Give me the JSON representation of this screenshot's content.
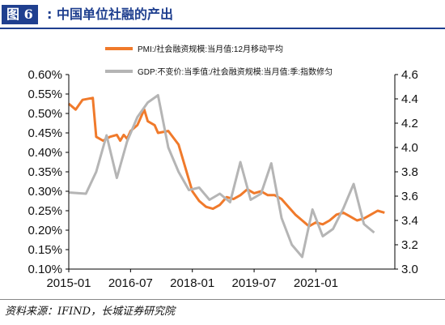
{
  "figure": {
    "label": "图 6",
    "colon": ":",
    "title": "中国单位社融的产出",
    "source": "资料来源：IFIND，长城证券研究院"
  },
  "colors": {
    "header_blue": "#1f3f8f",
    "pmi_series": "#f07a2b",
    "gdp_series": "#b5b5b5"
  },
  "chart_data": {
    "type": "line",
    "legend_placement": "top",
    "grid": false,
    "x_ticks": [
      "2015-01",
      "2016-07",
      "2018-01",
      "2019-07",
      "2021-01"
    ],
    "x_range": [
      "2015-01",
      "2022-12"
    ],
    "y_left": {
      "ticks": [
        "0.10%",
        "0.15%",
        "0.20%",
        "0.25%",
        "0.30%",
        "0.35%",
        "0.40%",
        "0.45%",
        "0.50%",
        "0.55%",
        "0.60%"
      ],
      "range": [
        0.1,
        0.6
      ]
    },
    "y_right": {
      "ticks": [
        "3.0",
        "3.2",
        "3.4",
        "3.6",
        "3.8",
        "4.0",
        "4.2",
        "4.4",
        "4.6"
      ],
      "range": [
        3.0,
        4.6
      ]
    },
    "series": [
      {
        "name": "PMI:/社会融资规模:当月值:12月移动平均",
        "axis": "left",
        "color": "#f07a2b",
        "points": [
          [
            "2015-01",
            0.525
          ],
          [
            "2015-03",
            0.51
          ],
          [
            "2015-05",
            0.535
          ],
          [
            "2015-08",
            0.54
          ],
          [
            "2015-09",
            0.44
          ],
          [
            "2015-11",
            0.43
          ],
          [
            "2016-01",
            0.44
          ],
          [
            "2016-03",
            0.445
          ],
          [
            "2016-04",
            0.43
          ],
          [
            "2016-05",
            0.445
          ],
          [
            "2016-06",
            0.435
          ],
          [
            "2016-07",
            0.455
          ],
          [
            "2016-09",
            0.47
          ],
          [
            "2016-11",
            0.51
          ],
          [
            "2016-12",
            0.48
          ],
          [
            "2017-02",
            0.47
          ],
          [
            "2017-03",
            0.45
          ],
          [
            "2017-06",
            0.455
          ],
          [
            "2017-09",
            0.42
          ],
          [
            "2017-11",
            0.36
          ],
          [
            "2018-01",
            0.3
          ],
          [
            "2018-03",
            0.275
          ],
          [
            "2018-05",
            0.26
          ],
          [
            "2018-07",
            0.255
          ],
          [
            "2018-09",
            0.265
          ],
          [
            "2018-11",
            0.285
          ],
          [
            "2019-01",
            0.28
          ],
          [
            "2019-03",
            0.29
          ],
          [
            "2019-05",
            0.305
          ],
          [
            "2019-07",
            0.295
          ],
          [
            "2019-09",
            0.3
          ],
          [
            "2019-11",
            0.29
          ],
          [
            "2020-01",
            0.29
          ],
          [
            "2020-03",
            0.28
          ],
          [
            "2020-05",
            0.26
          ],
          [
            "2020-07",
            0.24
          ],
          [
            "2020-09",
            0.225
          ],
          [
            "2020-11",
            0.21
          ],
          [
            "2021-01",
            0.22
          ],
          [
            "2021-03",
            0.215
          ],
          [
            "2021-05",
            0.225
          ],
          [
            "2021-07",
            0.24
          ],
          [
            "2021-09",
            0.245
          ],
          [
            "2021-11",
            0.235
          ],
          [
            "2022-01",
            0.225
          ],
          [
            "2022-03",
            0.23
          ],
          [
            "2022-05",
            0.24
          ],
          [
            "2022-07",
            0.25
          ],
          [
            "2022-09",
            0.245
          ]
        ]
      },
      {
        "name": "GDP:不变价:当季值:/社会融资规模:当月值:季:指数修匀",
        "axis": "right",
        "color": "#b5b5b5",
        "points": [
          [
            "2015-01",
            3.63
          ],
          [
            "2015-06",
            3.62
          ],
          [
            "2015-09",
            3.8
          ],
          [
            "2015-12",
            4.1
          ],
          [
            "2016-03",
            3.75
          ],
          [
            "2016-06",
            4.05
          ],
          [
            "2016-09",
            4.25
          ],
          [
            "2016-12",
            4.37
          ],
          [
            "2017-03",
            4.43
          ],
          [
            "2017-06",
            4.0
          ],
          [
            "2017-09",
            3.8
          ],
          [
            "2017-12",
            3.65
          ],
          [
            "2018-03",
            3.67
          ],
          [
            "2018-06",
            3.57
          ],
          [
            "2018-09",
            3.62
          ],
          [
            "2018-12",
            3.55
          ],
          [
            "2019-03",
            3.88
          ],
          [
            "2019-06",
            3.57
          ],
          [
            "2019-09",
            3.62
          ],
          [
            "2019-12",
            3.87
          ],
          [
            "2020-03",
            3.42
          ],
          [
            "2020-06",
            3.2
          ],
          [
            "2020-09",
            3.1
          ],
          [
            "2020-12",
            3.49
          ],
          [
            "2021-03",
            3.27
          ],
          [
            "2021-06",
            3.33
          ],
          [
            "2021-09",
            3.5
          ],
          [
            "2021-12",
            3.7
          ],
          [
            "2022-03",
            3.37
          ],
          [
            "2022-06",
            3.3
          ]
        ]
      }
    ]
  }
}
